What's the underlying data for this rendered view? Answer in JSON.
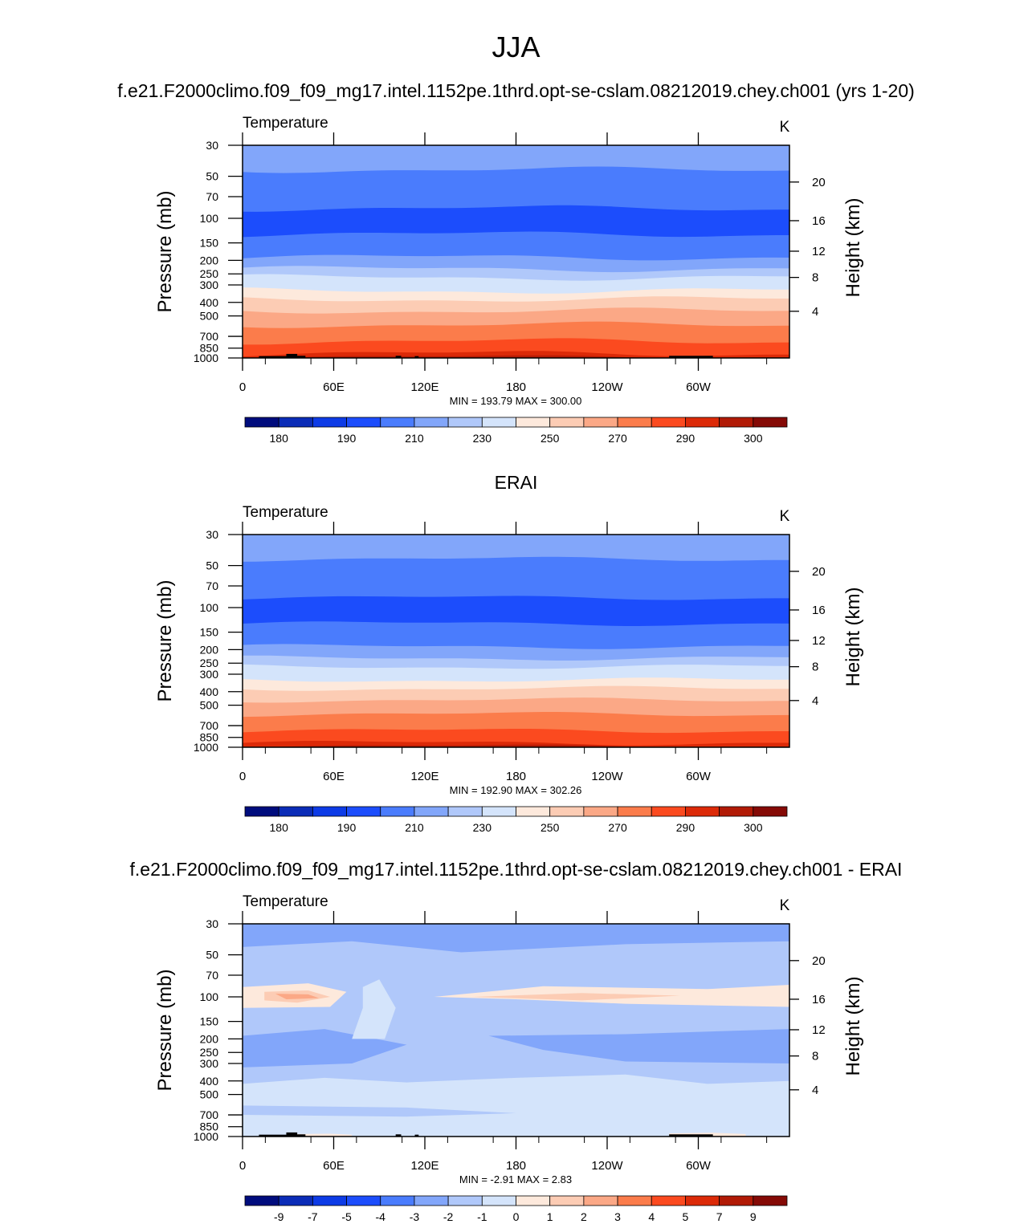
{
  "title": "JJA",
  "chart_data": [
    {
      "type": "heatmap",
      "panel_title": "f.e21.F2000climo.f09_f09_mg17.intel.1152pe.1thrd.opt-se-cslam.08212019.chey.ch001 (yrs 1-20)",
      "variable": "Temperature",
      "units": "K",
      "ylabel": "Pressure (mb)",
      "ylabel_right": "Height (km)",
      "xticks": [
        "0",
        "60E",
        "120E",
        "180",
        "120W",
        "60W"
      ],
      "yticks": [
        "30",
        "50",
        "70",
        "100",
        "150",
        "200",
        "250",
        "300",
        "400",
        "500",
        "700",
        "850",
        "1000"
      ],
      "height_ticks": [
        "20",
        "16",
        "12",
        "8",
        "4"
      ],
      "ylim": [
        1000,
        30
      ],
      "stats": "MIN = 193.79  MAX = 300.00",
      "colorbar_labels": [
        "180",
        "190",
        "210",
        "230",
        "250",
        "270",
        "290",
        "300"
      ],
      "levels": [
        180,
        185,
        190,
        200,
        210,
        220,
        230,
        240,
        250,
        260,
        270,
        280,
        290,
        295,
        300
      ],
      "vertical_profile_K": [
        {
          "p": 30,
          "t": 222
        },
        {
          "p": 50,
          "t": 215
        },
        {
          "p": 100,
          "t": 202
        },
        {
          "p": 150,
          "t": 212
        },
        {
          "p": 200,
          "t": 220
        },
        {
          "p": 250,
          "t": 228
        },
        {
          "p": 300,
          "t": 238
        },
        {
          "p": 400,
          "t": 252
        },
        {
          "p": 500,
          "t": 262
        },
        {
          "p": 700,
          "t": 278
        },
        {
          "p": 850,
          "t": 288
        },
        {
          "p": 1000,
          "t": 296
        }
      ],
      "min": 193.79,
      "max": 300.0
    },
    {
      "type": "heatmap",
      "panel_title": "ERAI",
      "variable": "Temperature",
      "units": "K",
      "ylabel": "Pressure (mb)",
      "ylabel_right": "Height (km)",
      "xticks": [
        "0",
        "60E",
        "120E",
        "180",
        "120W",
        "60W"
      ],
      "yticks": [
        "30",
        "50",
        "70",
        "100",
        "150",
        "200",
        "250",
        "300",
        "400",
        "500",
        "700",
        "850",
        "1000"
      ],
      "height_ticks": [
        "20",
        "16",
        "12",
        "8",
        "4"
      ],
      "ylim": [
        1000,
        30
      ],
      "stats": "MIN = 192.90  MAX = 302.26",
      "colorbar_labels": [
        "180",
        "190",
        "210",
        "230",
        "250",
        "270",
        "290",
        "300"
      ],
      "levels": [
        180,
        185,
        190,
        200,
        210,
        220,
        230,
        240,
        250,
        260,
        270,
        280,
        290,
        295,
        300
      ],
      "min": 192.9,
      "max": 302.26
    },
    {
      "type": "heatmap",
      "panel_title": "f.e21.F2000climo.f09_f09_mg17.intel.1152pe.1thrd.opt-se-cslam.08212019.chey.ch001 - ERAI",
      "variable": "Temperature",
      "units": "K",
      "ylabel": "Pressure (mb)",
      "ylabel_right": "Height (km)",
      "xticks": [
        "0",
        "60E",
        "120E",
        "180",
        "120W",
        "60W"
      ],
      "yticks": [
        "30",
        "50",
        "70",
        "100",
        "150",
        "200",
        "250",
        "300",
        "400",
        "500",
        "700",
        "850",
        "1000"
      ],
      "height_ticks": [
        "20",
        "16",
        "12",
        "8",
        "4"
      ],
      "ylim": [
        1000,
        30
      ],
      "stats": "MIN =  -2.91  MAX =   2.83",
      "colorbar_labels": [
        "-9",
        "-7",
        "-5",
        "-4",
        "-3",
        "-2",
        "-1",
        "0",
        "1",
        "2",
        "3",
        "4",
        "5",
        "7",
        "9"
      ],
      "levels": [
        -9,
        -7,
        -5,
        -4,
        -3,
        -2,
        -1,
        0,
        1,
        2,
        3,
        4,
        5,
        7,
        9
      ],
      "min": -2.91,
      "max": 2.83
    }
  ],
  "colors": {
    "palette": [
      "#000c7d",
      "#0b2cb7",
      "#0d3be6",
      "#1c4dfc",
      "#4a7cfd",
      "#82a6fa",
      "#b0c8fa",
      "#d4e4fb",
      "#fde9dc",
      "#fcccb4",
      "#fba886",
      "#fb7c4b",
      "#fb4a1f",
      "#dc2a08",
      "#b11a06",
      "#850a06"
    ],
    "terrain": "#000000"
  }
}
